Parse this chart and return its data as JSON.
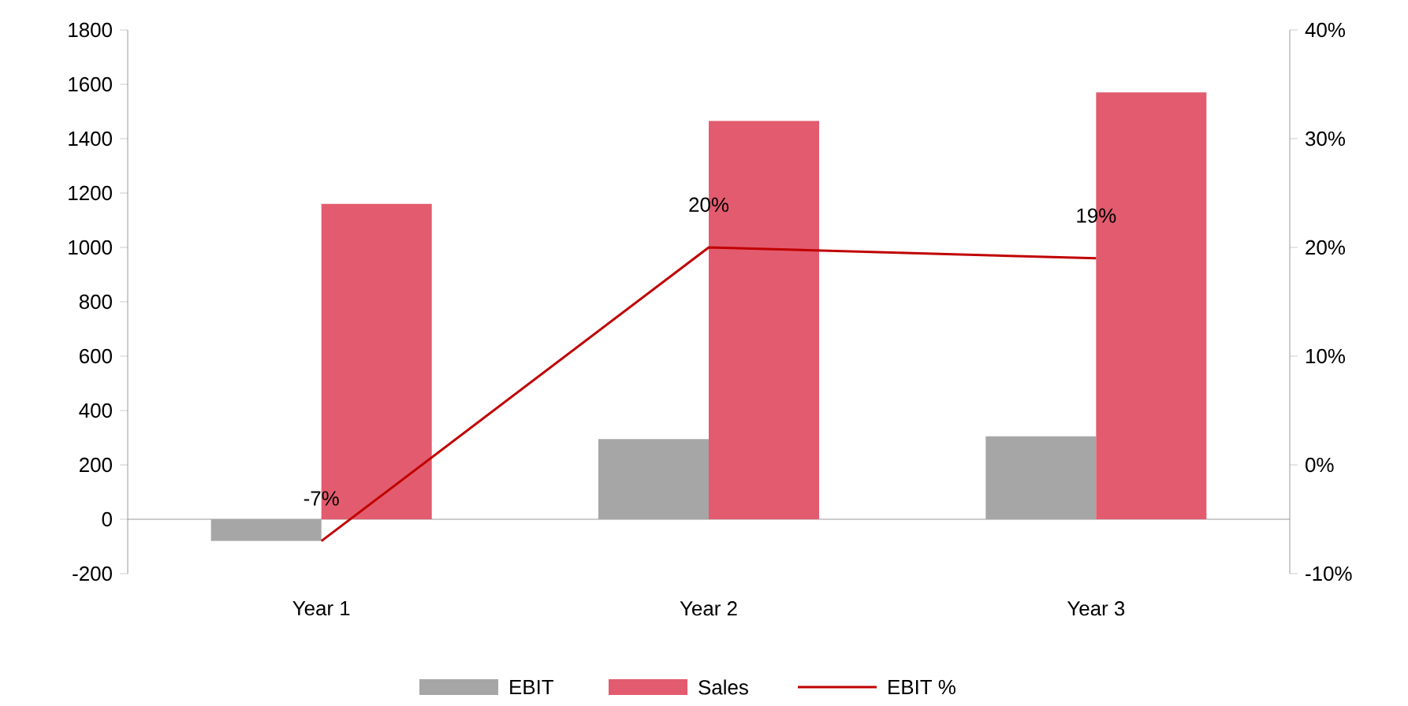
{
  "chart_data": {
    "type": "bar",
    "categories": [
      "Year 1",
      "Year 2",
      "Year 3"
    ],
    "series": [
      {
        "name": "EBIT",
        "color": "#a6a6a6",
        "values": [
          -80,
          295,
          305
        ]
      },
      {
        "name": "Sales",
        "color": "#e35b6e",
        "values": [
          1160,
          1465,
          1570
        ]
      },
      {
        "name": "EBIT %",
        "type": "line",
        "axis": "y2",
        "color": "#c00000",
        "values": [
          -7,
          20,
          19
        ],
        "value_labels": [
          "-7%",
          "20%",
          "19%"
        ]
      }
    ],
    "ylim": [
      -200,
      1800
    ],
    "yticks": [
      -200,
      0,
      200,
      400,
      600,
      800,
      1000,
      1200,
      1400,
      1600,
      1800
    ],
    "y2lim": [
      -10,
      40
    ],
    "y2ticks": [
      {
        "value": -10,
        "label": "-10%"
      },
      {
        "value": 0,
        "label": "0%"
      },
      {
        "value": 10,
        "label": "10%"
      },
      {
        "value": 20,
        "label": "20%"
      },
      {
        "value": 30,
        "label": "30%"
      },
      {
        "value": 40,
        "label": "40%"
      }
    ],
    "legend": "bottom",
    "marker": "none",
    "line_style": "solid"
  }
}
